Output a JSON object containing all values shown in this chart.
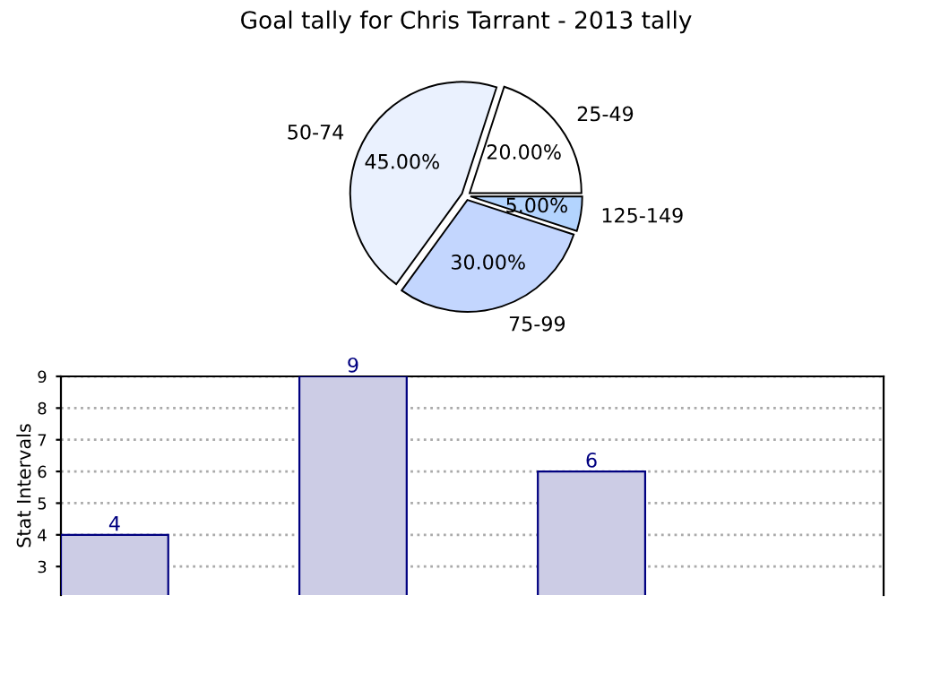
{
  "chart_data": [
    {
      "type": "pie",
      "title": "Goal tally for Chris Tarrant - 2013 tally",
      "categories": [
        "25-49",
        "50-74",
        "75-99",
        "125-149"
      ],
      "values": [
        20,
        45,
        30,
        5
      ],
      "value_labels": [
        "20.00%",
        "45.00%",
        "30.00%",
        "5.00%"
      ],
      "colors": [
        "#ffffff",
        "#eaf1fe",
        "#c3d6fe",
        "#b3d4fe"
      ]
    },
    {
      "type": "bar",
      "ylabel": "Stat Intervals",
      "categories": [
        null,
        null,
        null,
        null
      ],
      "values": [
        4,
        9,
        6,
        null
      ],
      "color": "#ccccE5",
      "data_labels": true,
      "ylim": [
        2.1,
        9
      ],
      "yticks": [
        3,
        4,
        5,
        6,
        7,
        8,
        9
      ],
      "grid": "y"
    }
  ]
}
